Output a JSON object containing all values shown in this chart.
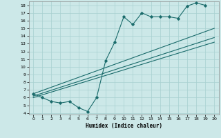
{
  "xlabel": "Humidex (Indice chaleur)",
  "xlim": [
    -0.5,
    20.5
  ],
  "ylim": [
    3.8,
    18.5
  ],
  "xticks": [
    0,
    1,
    2,
    3,
    4,
    5,
    6,
    7,
    8,
    9,
    10,
    11,
    12,
    13,
    14,
    15,
    16,
    17,
    18,
    19,
    20
  ],
  "yticks": [
    4,
    5,
    6,
    7,
    8,
    9,
    10,
    11,
    12,
    13,
    14,
    15,
    16,
    17,
    18
  ],
  "bg_color": "#cce8e8",
  "grid_color": "#a8d0d0",
  "line_color": "#1a6b6b",
  "series1_x": [
    0,
    1,
    2,
    3,
    4,
    5,
    6,
    7,
    8,
    9,
    10,
    11,
    12,
    13,
    14,
    15,
    16,
    17,
    18,
    19
  ],
  "series1_y": [
    6.5,
    6.0,
    5.5,
    5.3,
    5.5,
    4.7,
    4.2,
    6.0,
    10.8,
    13.2,
    16.5,
    15.5,
    17.0,
    16.5,
    16.5,
    16.5,
    16.3,
    17.9,
    18.3,
    18.0
  ],
  "series2_x": [
    0,
    20
  ],
  "series2_y": [
    6.5,
    15.0
  ],
  "series3_x": [
    0,
    20
  ],
  "series3_y": [
    6.2,
    13.8
  ],
  "series4_x": [
    0,
    20
  ],
  "series4_y": [
    6.0,
    13.2
  ]
}
